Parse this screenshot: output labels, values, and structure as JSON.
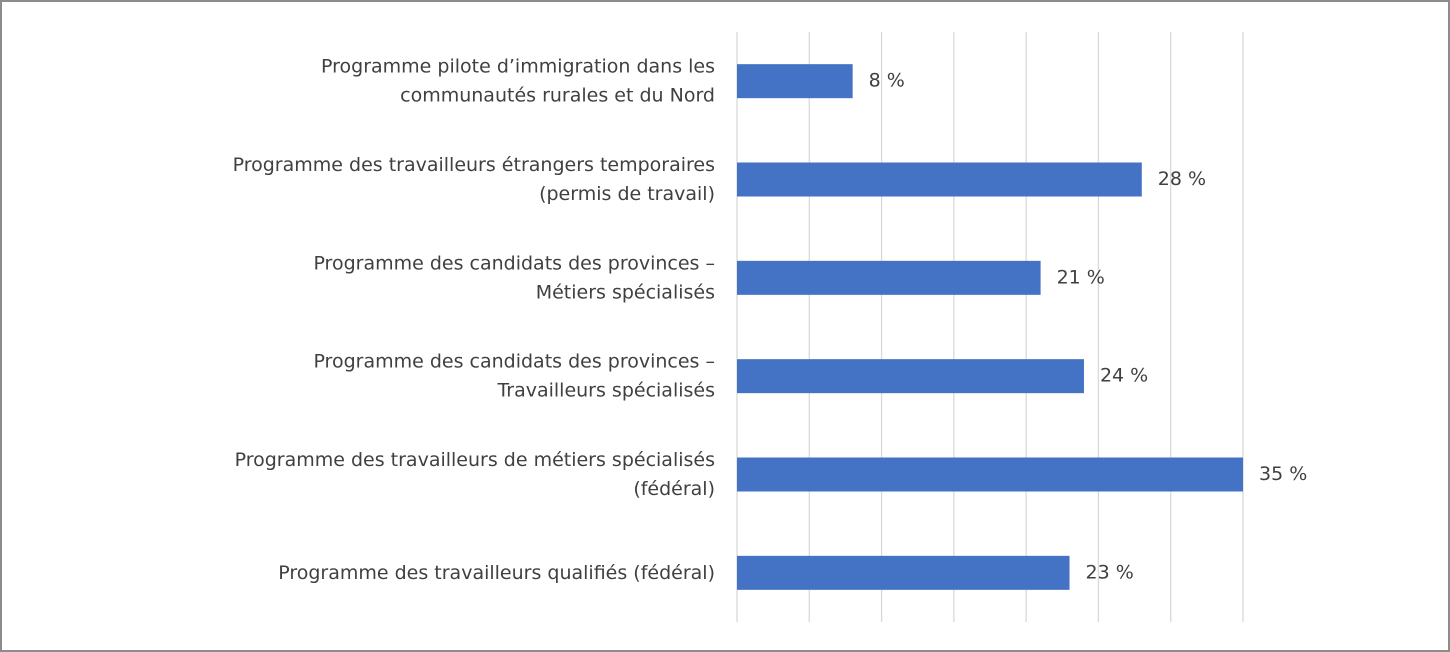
{
  "chart_data": {
    "type": "barh",
    "categories": [
      "Programme pilote d’immigration dans les\ncommunautés rurales et du Nord",
      "Programme des travailleurs étrangers temporaires\n(permis de travail)",
      "Programme des candidats des provinces –\nMétiers spécialisés",
      "Programme des candidats des provinces –\nTravailleurs spécialisés",
      "Programme des travailleurs de métiers spécialisés\n(fédéral)",
      "Programme des travailleurs qualifiés (fédéral)"
    ],
    "values": [
      8,
      28,
      21,
      24,
      35,
      23
    ],
    "value_labels": [
      "8 %",
      "28 %",
      "21 %",
      "24 %",
      "35 %",
      "23 %"
    ],
    "color": "#4472c4",
    "xlim": [
      0,
      35
    ],
    "xticks": [
      0,
      5,
      10,
      15,
      20,
      25,
      30,
      35
    ],
    "grid": true
  }
}
